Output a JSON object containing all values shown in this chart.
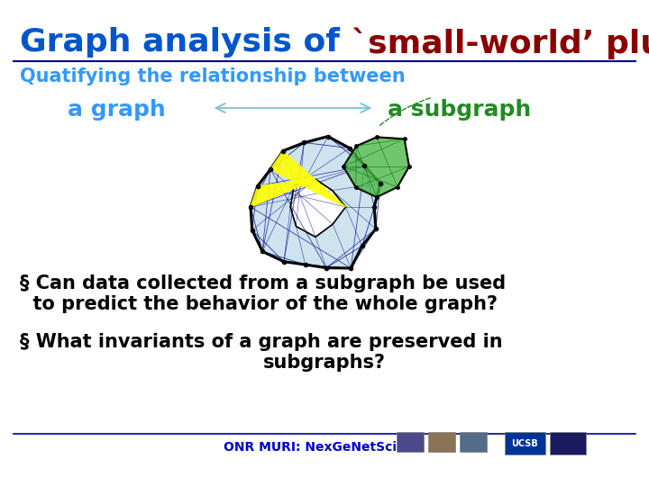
{
  "title_blue": "Graph analysis of ",
  "title_dark": "`small-world’ plus",
  "title_blue_color": "#0055CC",
  "title_dark_color": "#8B0000",
  "title_fontsize": 26,
  "bg_color": "#FFFFFF",
  "subtitle": "Quatifying the relationship between",
  "subtitle_color": "#3399FF",
  "subtitle_fontsize": 15,
  "label_graph": "a graph",
  "label_subgraph": "a subgraph",
  "label_blue_color": "#3399FF",
  "label_green_color": "#228B22",
  "label_fontsize": 18,
  "bullet1_line1": "§ Can data collected from a subgraph be used",
  "bullet1_line2": "  to predict the behavior of the whole graph?",
  "bullet2_line1": "§ What invariants of a graph are preserved in",
  "bullet2_line2": "subgraphs?",
  "bullet_color": "#000000",
  "bullet_fontsize": 15,
  "footer_text": "ONR MURI: NexGeNetSci",
  "footer_color": "#0000CD",
  "footer_fontsize": 10,
  "separator_color": "#00008B"
}
